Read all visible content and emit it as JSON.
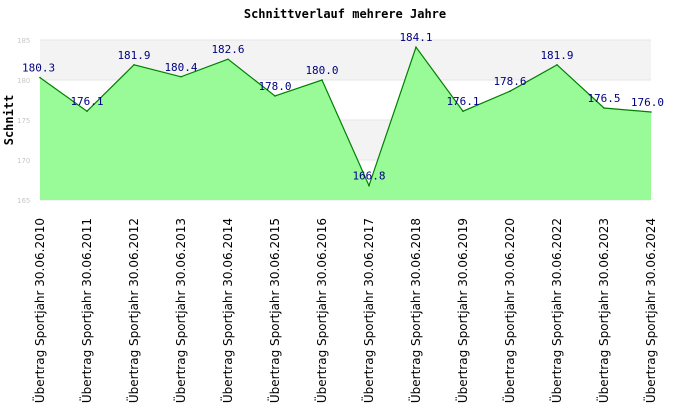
{
  "chart_data": {
    "type": "area",
    "title": "Schnittverlauf mehrere Jahre",
    "xlabel": "",
    "ylabel": "Schnitt",
    "ylim": [
      165,
      185
    ],
    "yticks": [
      165,
      170,
      175,
      180,
      185
    ],
    "grid": true,
    "categories": [
      "Übertrag Sportjahr 30.06.2010",
      "Übertrag Sportjahr 30.06.2011",
      "Übertrag Sportjahr 30.06.2012",
      "Übertrag Sportjahr 30.06.2013",
      "Übertrag Sportjahr 30.06.2014",
      "Übertrag Sportjahr 30.06.2015",
      "Übertrag Sportjahr 30.06.2016",
      "Übertrag Sportjahr 30.06.2017",
      "Übertrag Sportjahr 30.06.2018",
      "Übertrag Sportjahr 30.06.2019",
      "Übertrag Sportjahr 30.06.2020",
      "Übertrag Sportjahr 30.06.2022",
      "Übertrag Sportjahr 30.06.2023",
      "Übertrag Sportjahr 30.06.2024"
    ],
    "values": [
      180.3,
      176.1,
      181.9,
      180.4,
      182.6,
      178.0,
      180.0,
      166.8,
      184.1,
      176.1,
      178.6,
      181.9,
      176.5,
      176.0
    ],
    "value_labels": [
      "180.3",
      "176.1",
      "181.9",
      "180.4",
      "182.6",
      "178.0",
      "180.0",
      "166.8",
      "184.1",
      "176.1",
      "178.6",
      "181.9",
      "176.5",
      "176.0"
    ],
    "colors": {
      "fill": "#98fb98",
      "line": "#008000",
      "label": "#000080",
      "band_light": "#f3f3f3",
      "band_white": "#ffffff"
    }
  }
}
